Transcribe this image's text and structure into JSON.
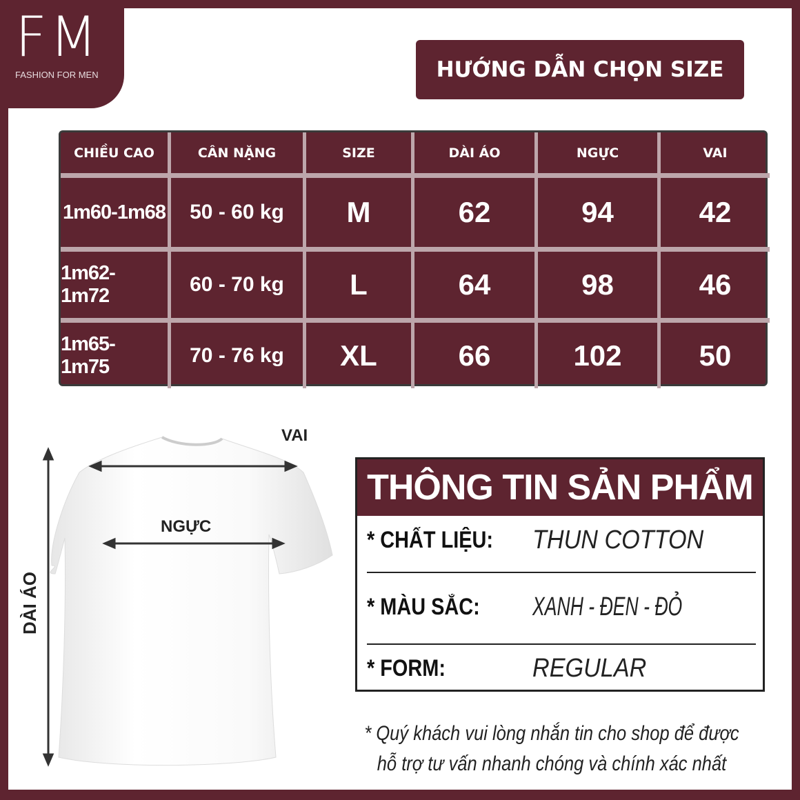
{
  "brand": {
    "logo": "FM",
    "tagline": "FASHION FOR MEN"
  },
  "title": "HƯỚNG DẪN CHỌN  SIZE",
  "table": {
    "headers": [
      "CHIỀU CAO",
      "CÂN NẶNG",
      "SIZE",
      "DÀI ÁO",
      "NGỰC",
      "VAI"
    ],
    "rows": [
      [
        "1m60-1m68",
        "50 - 60 kg",
        "M",
        "62",
        "94",
        "42"
      ],
      [
        "1m62- 1m72",
        "60 - 70 kg",
        "L",
        "64",
        "98",
        "46"
      ],
      [
        "1m65- 1m75",
        "70 - 76 kg",
        "XL",
        "66",
        "102",
        "50"
      ]
    ]
  },
  "diagram": {
    "shoulder": "VAI",
    "chest": "NGỰC",
    "length": "DÀI ÁO"
  },
  "info": {
    "title": "THÔNG TIN SẢN PHẨM",
    "rows": [
      {
        "k": "* CHẤT LIỆU:",
        "v": "THUN COTTON"
      },
      {
        "k": "* MÀU SẮC:",
        "v": "XANH - ĐEN - ĐỎ"
      },
      {
        "k": "* FORM:",
        "v": "REGULAR"
      }
    ]
  },
  "note": [
    "* Quý khách vui lòng nhắn tin cho shop để được",
    "hỗ trợ tư vấn nhanh chóng và chính xác nhất"
  ],
  "colors": {
    "brand": "#5e2430",
    "grid": "#bda6ab"
  }
}
